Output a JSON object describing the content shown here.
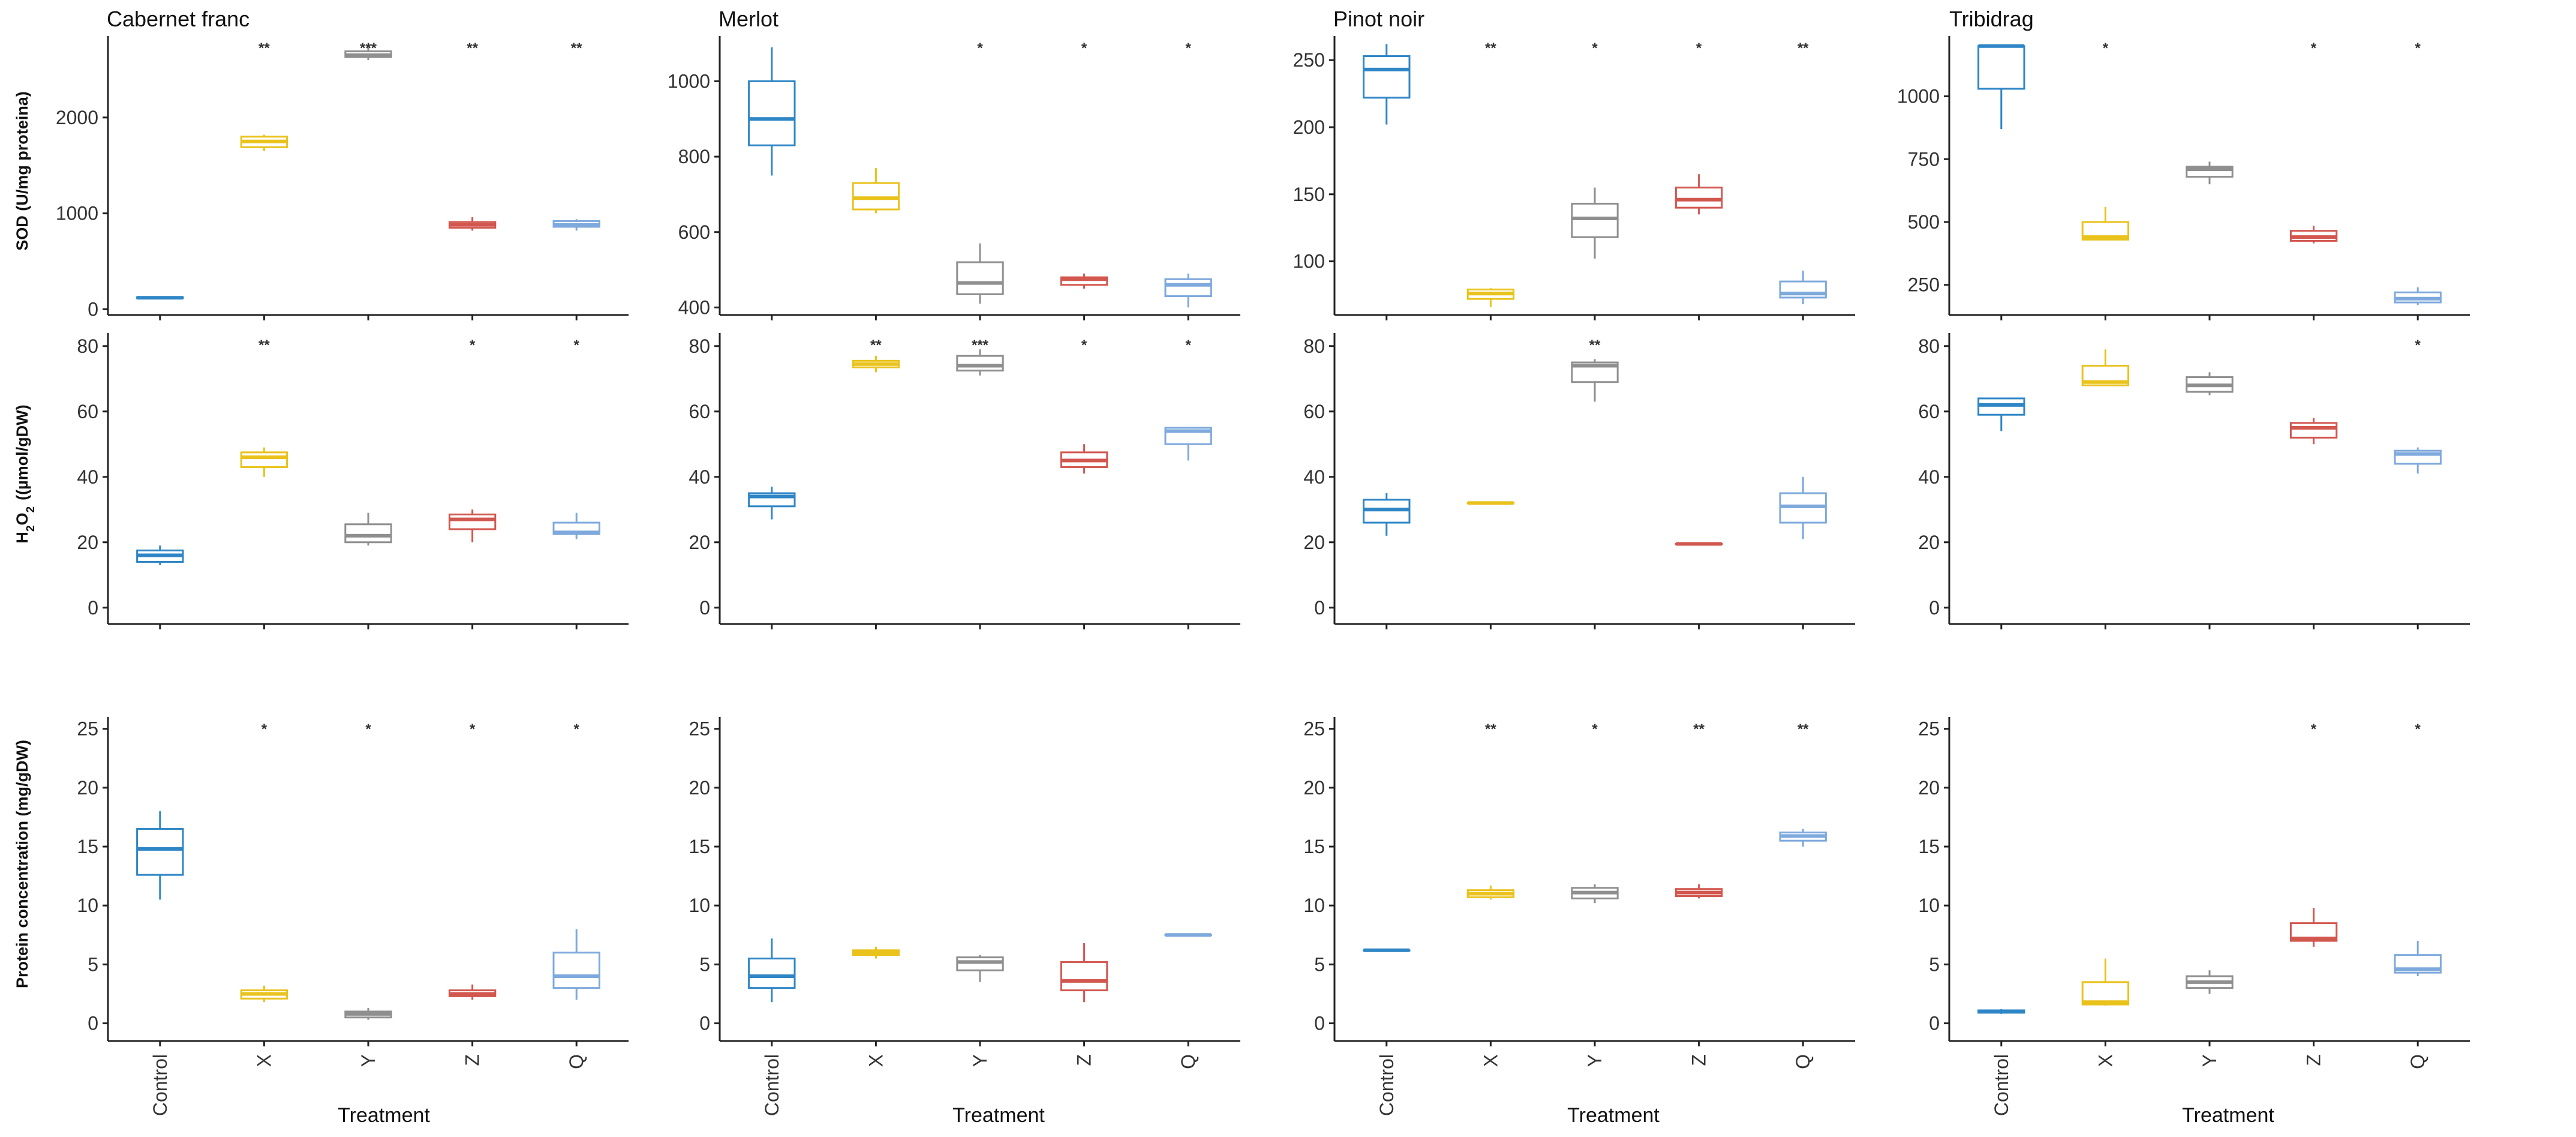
{
  "figure": {
    "colors": {
      "Control": "#2f86c6",
      "X": "#e9c21c",
      "Y": "#8f8f8f",
      "Z": "#d2574f",
      "Q": "#7ea9dc"
    },
    "xlabel": "Treatment",
    "treatments": [
      "Control",
      "X",
      "Y",
      "Z",
      "Q"
    ],
    "cultivars": [
      "Cabernet franc",
      "Merlot",
      "Pinot noir",
      "Tribidrag"
    ],
    "ylabels": {
      "sod": "SOD (U/mg proteina)",
      "h2o2": "((µmol/gDW)",
      "protein": "Protein concentration (mg/gDW)"
    }
  },
  "chart_data": [
    {
      "type": "box",
      "title": "Cabernet franc",
      "ylabel": "SOD (U/mg proteina)",
      "ylim": [
        -60,
        2850
      ],
      "yticks": [
        0,
        1000,
        2000
      ],
      "categories": [
        "Control",
        "X",
        "Y",
        "Z",
        "Q"
      ],
      "boxes": [
        {
          "min": 110,
          "q1": 115,
          "median": 120,
          "q3": 125,
          "max": 130
        },
        {
          "min": 1650,
          "q1": 1690,
          "median": 1750,
          "q3": 1800,
          "max": 1820
        },
        {
          "min": 2600,
          "q1": 2630,
          "median": 2650,
          "q3": 2690,
          "max": 2760
        },
        {
          "min": 820,
          "q1": 850,
          "median": 880,
          "q3": 910,
          "max": 960
        },
        {
          "min": 820,
          "q1": 860,
          "median": 880,
          "q3": 920,
          "max": 940
        }
      ],
      "significance": [
        "",
        "**",
        "***",
        "**",
        "**"
      ]
    },
    {
      "type": "box",
      "title": "Merlot",
      "ylabel": "",
      "ylim": [
        380,
        1120
      ],
      "yticks": [
        400,
        600,
        800,
        1000
      ],
      "categories": [
        "Control",
        "X",
        "Y",
        "Z",
        "Q"
      ],
      "boxes": [
        {
          "min": 750,
          "q1": 830,
          "median": 900,
          "q3": 1000,
          "max": 1090
        },
        {
          "min": 650,
          "q1": 660,
          "median": 690,
          "q3": 730,
          "max": 770
        },
        {
          "min": 410,
          "q1": 435,
          "median": 465,
          "q3": 520,
          "max": 570
        },
        {
          "min": 450,
          "q1": 460,
          "median": 475,
          "q3": 480,
          "max": 490
        },
        {
          "min": 400,
          "q1": 430,
          "median": 460,
          "q3": 475,
          "max": 490
        }
      ],
      "significance": [
        "",
        "",
        "*",
        "*",
        "*"
      ]
    },
    {
      "type": "box",
      "title": "Pinot noir",
      "ylabel": "",
      "ylim": [
        60,
        268
      ],
      "yticks": [
        100,
        150,
        200,
        250
      ],
      "categories": [
        "Control",
        "X",
        "Y",
        "Z",
        "Q"
      ],
      "boxes": [
        {
          "min": 202,
          "q1": 222,
          "median": 243,
          "q3": 253,
          "max": 262
        },
        {
          "min": 66,
          "q1": 72,
          "median": 76,
          "q3": 79,
          "max": 80
        },
        {
          "min": 102,
          "q1": 118,
          "median": 132,
          "q3": 143,
          "max": 155
        },
        {
          "min": 135,
          "q1": 140,
          "median": 146,
          "q3": 155,
          "max": 165
        },
        {
          "min": 68,
          "q1": 73,
          "median": 76,
          "q3": 85,
          "max": 93
        }
      ],
      "significance": [
        "",
        "**",
        "*",
        "*",
        "**"
      ]
    },
    {
      "type": "box",
      "title": "Tribidrag",
      "ylabel": "",
      "ylim": [
        130,
        1240
      ],
      "yticks": [
        250,
        500,
        750,
        1000
      ],
      "categories": [
        "Control",
        "X",
        "Y",
        "Z",
        "Q"
      ],
      "boxes": [
        {
          "min": 870,
          "q1": 1030,
          "median": 1200,
          "q3": 1200,
          "max": 1200
        },
        {
          "min": 430,
          "q1": 430,
          "median": 440,
          "q3": 500,
          "max": 560
        },
        {
          "min": 650,
          "q1": 680,
          "median": 710,
          "q3": 720,
          "max": 740
        },
        {
          "min": 415,
          "q1": 425,
          "median": 440,
          "q3": 465,
          "max": 485
        },
        {
          "min": 170,
          "q1": 180,
          "median": 195,
          "q3": 220,
          "max": 240
        }
      ],
      "significance": [
        "",
        "*",
        "",
        "*",
        "*"
      ]
    },
    {
      "type": "box",
      "title": "",
      "ylabel": "H2O2 ((µmol/gDW)",
      "ylim": [
        -5,
        84
      ],
      "yticks": [
        0,
        20,
        40,
        60,
        80
      ],
      "categories": [
        "Control",
        "X",
        "Y",
        "Z",
        "Q"
      ],
      "boxes": [
        {
          "min": 13,
          "q1": 14,
          "median": 16,
          "q3": 17.5,
          "max": 19
        },
        {
          "min": 40,
          "q1": 43,
          "median": 46,
          "q3": 47.5,
          "max": 49
        },
        {
          "min": 19,
          "q1": 20,
          "median": 22,
          "q3": 25.5,
          "max": 29
        },
        {
          "min": 20,
          "q1": 24,
          "median": 27,
          "q3": 28.5,
          "max": 30
        },
        {
          "min": 21,
          "q1": 22.5,
          "median": 23,
          "q3": 26,
          "max": 29
        }
      ],
      "significance": [
        "",
        "**",
        "",
        "*",
        "*"
      ]
    },
    {
      "type": "box",
      "title": "",
      "ylabel": "",
      "ylim": [
        -5,
        84
      ],
      "yticks": [
        0,
        20,
        40,
        60,
        80
      ],
      "categories": [
        "Control",
        "X",
        "Y",
        "Z",
        "Q"
      ],
      "boxes": [
        {
          "min": 27,
          "q1": 31,
          "median": 34,
          "q3": 35,
          "max": 37
        },
        {
          "min": 72,
          "q1": 73.5,
          "median": 74.5,
          "q3": 75.5,
          "max": 77
        },
        {
          "min": 71,
          "q1": 72.5,
          "median": 74,
          "q3": 77,
          "max": 79
        },
        {
          "min": 41,
          "q1": 43,
          "median": 45,
          "q3": 47.5,
          "max": 50
        },
        {
          "min": 45,
          "q1": 50,
          "median": 54,
          "q3": 55,
          "max": 55
        }
      ],
      "significance": [
        "",
        "**",
        "***",
        "*",
        "*"
      ]
    },
    {
      "type": "box",
      "title": "",
      "ylabel": "",
      "ylim": [
        -5,
        84
      ],
      "yticks": [
        0,
        20,
        40,
        60,
        80
      ],
      "categories": [
        "Control",
        "X",
        "Y",
        "Z",
        "Q"
      ],
      "boxes": [
        {
          "min": 22,
          "q1": 26,
          "median": 30,
          "q3": 33,
          "max": 35
        },
        {
          "min": 32,
          "q1": 32,
          "median": 32,
          "q3": 32,
          "max": 32
        },
        {
          "min": 63,
          "q1": 69,
          "median": 74,
          "q3": 75,
          "max": 76
        },
        {
          "min": 19.5,
          "q1": 19.5,
          "median": 19.5,
          "q3": 19.5,
          "max": 19.5
        },
        {
          "min": 21,
          "q1": 26,
          "median": 31,
          "q3": 35,
          "max": 40
        }
      ],
      "significance": [
        "",
        "",
        "**",
        "",
        ""
      ]
    },
    {
      "type": "box",
      "title": "",
      "ylabel": "",
      "ylim": [
        -5,
        84
      ],
      "yticks": [
        0,
        20,
        40,
        60,
        80
      ],
      "categories": [
        "Control",
        "X",
        "Y",
        "Z",
        "Q"
      ],
      "boxes": [
        {
          "min": 54,
          "q1": 59,
          "median": 62,
          "q3": 64,
          "max": 64
        },
        {
          "min": 68,
          "q1": 68,
          "median": 69,
          "q3": 74,
          "max": 79
        },
        {
          "min": 65,
          "q1": 66,
          "median": 68,
          "q3": 70.5,
          "max": 72
        },
        {
          "min": 50,
          "q1": 52,
          "median": 55,
          "q3": 56.5,
          "max": 58
        },
        {
          "min": 41,
          "q1": 44,
          "median": 47,
          "q3": 48,
          "max": 49
        }
      ],
      "significance": [
        "",
        "",
        "",
        "",
        "*"
      ]
    },
    {
      "type": "box",
      "title": "",
      "ylabel": "Protein concentration (mg/gDW)",
      "ylim": [
        -1.5,
        26
      ],
      "yticks": [
        0,
        5,
        10,
        15,
        20,
        25
      ],
      "categories": [
        "Control",
        "X",
        "Y",
        "Z",
        "Q"
      ],
      "boxes": [
        {
          "min": 10.5,
          "q1": 12.6,
          "median": 14.8,
          "q3": 16.5,
          "max": 18
        },
        {
          "min": 1.8,
          "q1": 2.1,
          "median": 2.5,
          "q3": 2.8,
          "max": 3.2
        },
        {
          "min": 0.3,
          "q1": 0.5,
          "median": 0.8,
          "q3": 1.0,
          "max": 1.3
        },
        {
          "min": 2.0,
          "q1": 2.3,
          "median": 2.5,
          "q3": 2.8,
          "max": 3.3
        },
        {
          "min": 2.0,
          "q1": 3.0,
          "median": 4.0,
          "q3": 6.0,
          "max": 8.0
        }
      ],
      "significance": [
        "",
        "*",
        "*",
        "*",
        "*"
      ]
    },
    {
      "type": "box",
      "title": "",
      "ylabel": "",
      "ylim": [
        -1.5,
        26
      ],
      "yticks": [
        0,
        5,
        10,
        15,
        20,
        25
      ],
      "categories": [
        "Control",
        "X",
        "Y",
        "Z",
        "Q"
      ],
      "boxes": [
        {
          "min": 1.8,
          "q1": 3.0,
          "median": 4.0,
          "q3": 5.5,
          "max": 7.2
        },
        {
          "min": 5.5,
          "q1": 5.8,
          "median": 6.0,
          "q3": 6.2,
          "max": 6.5
        },
        {
          "min": 3.5,
          "q1": 4.5,
          "median": 5.2,
          "q3": 5.6,
          "max": 5.8
        },
        {
          "min": 1.8,
          "q1": 2.8,
          "median": 3.6,
          "q3": 5.2,
          "max": 6.8
        },
        {
          "min": 7.5,
          "q1": 7.5,
          "median": 7.5,
          "q3": 7.5,
          "max": 7.5
        }
      ],
      "significance": [
        "",
        "",
        "",
        "",
        ""
      ]
    },
    {
      "type": "box",
      "title": "",
      "ylabel": "",
      "ylim": [
        -1.5,
        26
      ],
      "yticks": [
        0,
        5,
        10,
        15,
        20,
        25
      ],
      "categories": [
        "Control",
        "X",
        "Y",
        "Z",
        "Q"
      ],
      "boxes": [
        {
          "min": 6.2,
          "q1": 6.2,
          "median": 6.2,
          "q3": 6.2,
          "max": 6.2
        },
        {
          "min": 10.5,
          "q1": 10.7,
          "median": 11.0,
          "q3": 11.3,
          "max": 11.7
        },
        {
          "min": 10.2,
          "q1": 10.6,
          "median": 11.1,
          "q3": 11.5,
          "max": 11.8
        },
        {
          "min": 10.6,
          "q1": 10.8,
          "median": 11.1,
          "q3": 11.4,
          "max": 11.8
        },
        {
          "min": 15.0,
          "q1": 15.5,
          "median": 15.9,
          "q3": 16.2,
          "max": 16.5
        }
      ],
      "significance": [
        "",
        "**",
        "*",
        "**",
        "**"
      ]
    },
    {
      "type": "box",
      "title": "",
      "ylabel": "",
      "ylim": [
        -1.5,
        26
      ],
      "yticks": [
        0,
        5,
        10,
        15,
        20,
        25
      ],
      "categories": [
        "Control",
        "X",
        "Y",
        "Z",
        "Q"
      ],
      "boxes": [
        {
          "min": 0.8,
          "q1": 0.9,
          "median": 1.0,
          "q3": 1.1,
          "max": 1.2
        },
        {
          "min": 1.5,
          "q1": 1.6,
          "median": 1.8,
          "q3": 3.5,
          "max": 5.5
        },
        {
          "min": 2.5,
          "q1": 3.0,
          "median": 3.5,
          "q3": 4.0,
          "max": 4.5
        },
        {
          "min": 6.5,
          "q1": 7.0,
          "median": 7.2,
          "q3": 8.5,
          "max": 9.8
        },
        {
          "min": 4.0,
          "q1": 4.3,
          "median": 4.6,
          "q3": 5.8,
          "max": 7.0
        }
      ],
      "significance": [
        "",
        "",
        "",
        "*",
        "*"
      ]
    }
  ]
}
